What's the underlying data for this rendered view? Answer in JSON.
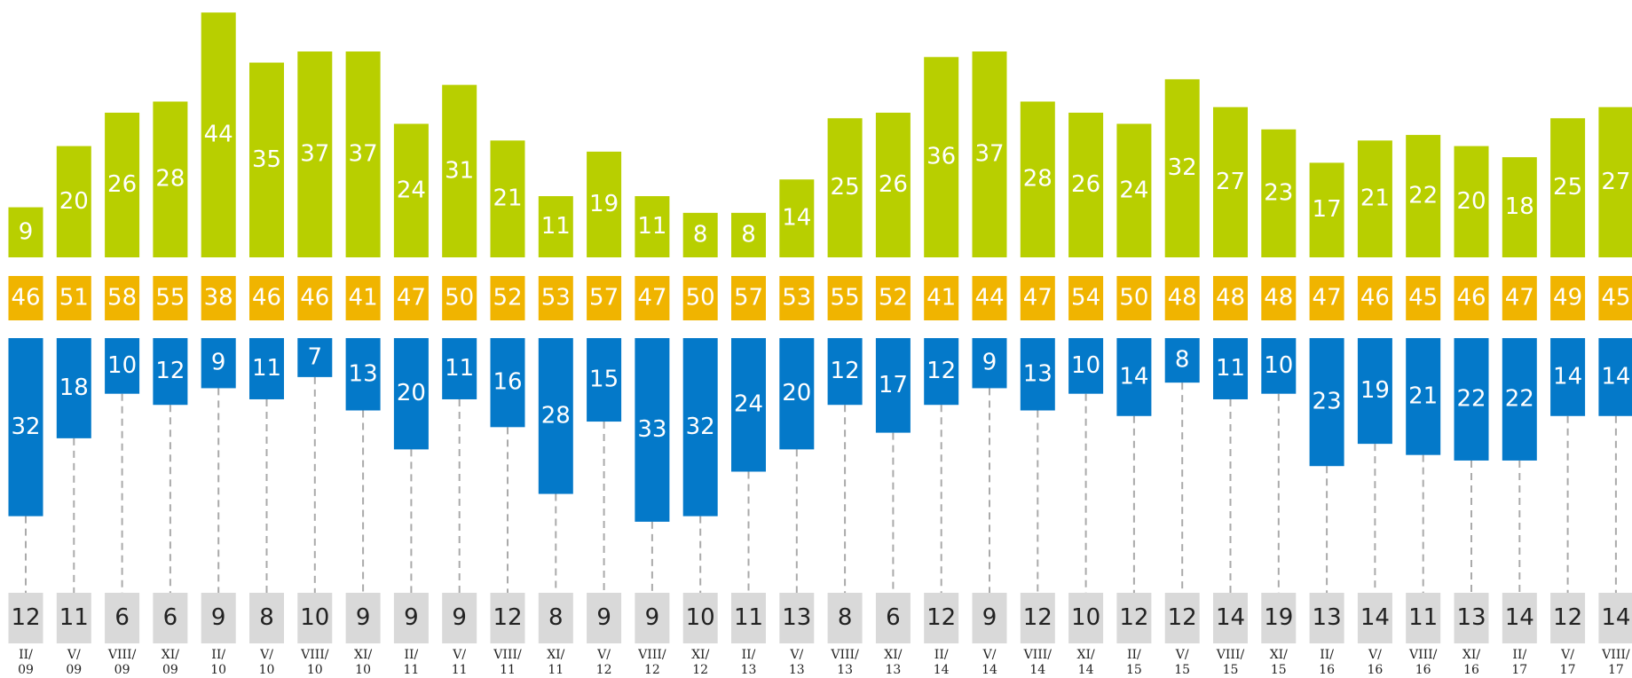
{
  "chart_data": {
    "type": "bar",
    "categories": [
      "II/\n09",
      "V/\n09",
      "VIII/\n09",
      "XI/\n09",
      "II/\n10",
      "V/\n10",
      "VIII/\n10",
      "XI/\n10",
      "II/\n11",
      "V/\n11",
      "VIII/\n11",
      "XI/\n11",
      "V/\n12",
      "VIII/\n12",
      "XI/\n12",
      "II/\n13",
      "V/\n13",
      "VIII/\n13",
      "XI/\n13",
      "II/\n14",
      "V/\n14",
      "VIII/\n14",
      "XI/\n14",
      "II/\n15",
      "V/\n15",
      "VIII/\n15",
      "XI/\n15",
      "II/\n16",
      "V/\n16",
      "VIII/\n16",
      "XI/\n16",
      "II/\n17",
      "V/\n17",
      "VIII/\n17"
    ],
    "series": [
      {
        "color": "#b8cf00",
        "values": [
          9,
          20,
          26,
          28,
          44,
          35,
          37,
          37,
          24,
          31,
          21,
          11,
          19,
          11,
          8,
          8,
          14,
          25,
          26,
          36,
          37,
          28,
          26,
          24,
          32,
          27,
          23,
          17,
          21,
          22,
          20,
          18,
          25,
          27
        ]
      },
      {
        "color": "#f0b400",
        "values": [
          46,
          51,
          58,
          55,
          38,
          46,
          46,
          41,
          47,
          50,
          52,
          53,
          57,
          47,
          50,
          57,
          53,
          55,
          52,
          41,
          44,
          47,
          54,
          50,
          48,
          48,
          48,
          47,
          46,
          45,
          46,
          47,
          49,
          45
        ]
      },
      {
        "color": "#0479c9",
        "values": [
          32,
          18,
          10,
          12,
          9,
          11,
          7,
          13,
          20,
          11,
          16,
          28,
          15,
          33,
          32,
          24,
          20,
          12,
          17,
          12,
          9,
          13,
          10,
          14,
          8,
          11,
          10,
          23,
          19,
          21,
          22,
          22,
          14,
          14
        ]
      },
      {
        "color": "#d9d9d9",
        "values": [
          12,
          11,
          6,
          6,
          9,
          8,
          10,
          9,
          9,
          9,
          12,
          8,
          9,
          9,
          10,
          11,
          13,
          8,
          6,
          12,
          9,
          12,
          10,
          12,
          12,
          14,
          19,
          13,
          14,
          11,
          13,
          14,
          12,
          14
        ]
      }
    ]
  }
}
